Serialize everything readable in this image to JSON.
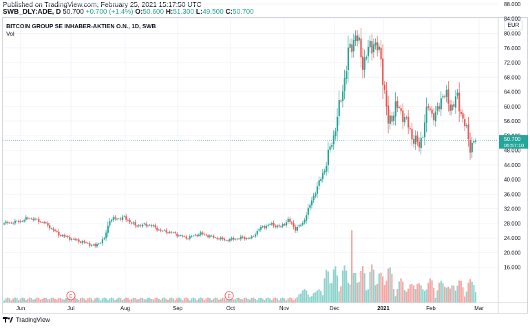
{
  "header": {
    "published": "Published on TradingView.com, February 25, 2021 15:17:50 UTC",
    "symbol": "SWB_DLY:ADE, D",
    "last": "50.700",
    "change": "+0.700 (+1.4%)",
    "o_label": "O:",
    "o_value": "50.600",
    "h_label": "H:",
    "h_value": "51.300",
    "l_label": "L:",
    "l_value": "49.500",
    "c_label": "C:",
    "c_value": "50.700"
  },
  "chart": {
    "title": "BITCOIN GROUP SE INHABER-AKTIEN O.N., 1D, SWB",
    "vol_label": "Vol",
    "currency": "EUR",
    "last_price_label": "50.700",
    "countdown": "05:57:10",
    "earnings_marker": "E"
  },
  "footer": {
    "brand": "TradingView"
  },
  "colors": {
    "up": "#26a69a",
    "down": "#ef5350",
    "vol_up": "#8ed4cd",
    "vol_down": "#f5a7a5",
    "grid": "#f0f3fa"
  },
  "chart_data": {
    "type": "candlestick",
    "title": "BITCOIN GROUP SE INHABER-AKTIEN O.N., 1D, SWB",
    "y_ticks": [
      "16.000",
      "20.000",
      "24.000",
      "28.000",
      "32.000",
      "36.000",
      "40.000",
      "44.000",
      "48.000",
      "52.000",
      "56.000",
      "60.000",
      "64.000",
      "68.000",
      "72.000",
      "76.000",
      "80.000",
      "84.000",
      "88.000"
    ],
    "ylim": [
      13.0,
      90.0
    ],
    "x_ticks": [
      "Jun",
      "Jul",
      "Aug",
      "Sep",
      "Oct",
      "Nov",
      "Dec",
      "2021",
      "Feb",
      "Mar"
    ],
    "x_ticks_bold": "2021",
    "earnings_events": [
      "Jul",
      "Oct"
    ],
    "last_price": 50.7,
    "monthly_closes": [
      {
        "month": "Jun",
        "close": 28.0
      },
      {
        "month": "Jul",
        "close": 23.0
      },
      {
        "month": "Aug",
        "close": 28.0
      },
      {
        "month": "Sep",
        "close": 25.0
      },
      {
        "month": "Oct",
        "close": 23.5
      },
      {
        "month": "Nov",
        "close": 28.0
      },
      {
        "month": "Dec",
        "close": 42.0
      },
      {
        "month": "2021",
        "close": 72.0
      },
      {
        "month": "Feb",
        "close": 54.0
      },
      {
        "month": "Mar",
        "close": 50.7
      }
    ],
    "keypoints": [
      [
        0,
        28
      ],
      [
        8,
        28.5
      ],
      [
        14,
        29.5
      ],
      [
        22,
        28.2
      ],
      [
        30,
        25
      ],
      [
        38,
        23.6
      ],
      [
        45,
        22.6
      ],
      [
        50,
        21.8
      ],
      [
        55,
        23.8
      ],
      [
        58,
        29
      ],
      [
        66,
        29.6
      ],
      [
        72,
        27.4
      ],
      [
        80,
        27.6
      ],
      [
        86,
        26
      ],
      [
        92,
        25.5
      ],
      [
        100,
        24
      ],
      [
        108,
        25.2
      ],
      [
        115,
        24.2
      ],
      [
        122,
        23.4
      ],
      [
        130,
        24
      ],
      [
        136,
        24
      ],
      [
        140,
        26.5
      ],
      [
        146,
        27.8
      ],
      [
        152,
        27
      ],
      [
        156,
        29
      ],
      [
        160,
        26.5
      ],
      [
        164,
        28
      ],
      [
        168,
        33
      ],
      [
        172,
        38
      ],
      [
        176,
        43
      ],
      [
        181,
        52
      ],
      [
        185,
        62
      ],
      [
        189,
        74
      ],
      [
        193,
        80
      ],
      [
        197,
        72
      ],
      [
        203,
        78
      ],
      [
        207,
        73
      ],
      [
        211,
        55
      ],
      [
        215,
        60
      ],
      [
        219,
        58
      ],
      [
        224,
        52
      ],
      [
        228,
        49
      ],
      [
        233,
        60
      ],
      [
        237,
        57
      ],
      [
        241,
        64
      ],
      [
        245,
        60
      ],
      [
        249,
        62
      ],
      [
        253,
        55
      ],
      [
        256,
        49
      ],
      [
        258,
        50.7
      ]
    ]
  }
}
